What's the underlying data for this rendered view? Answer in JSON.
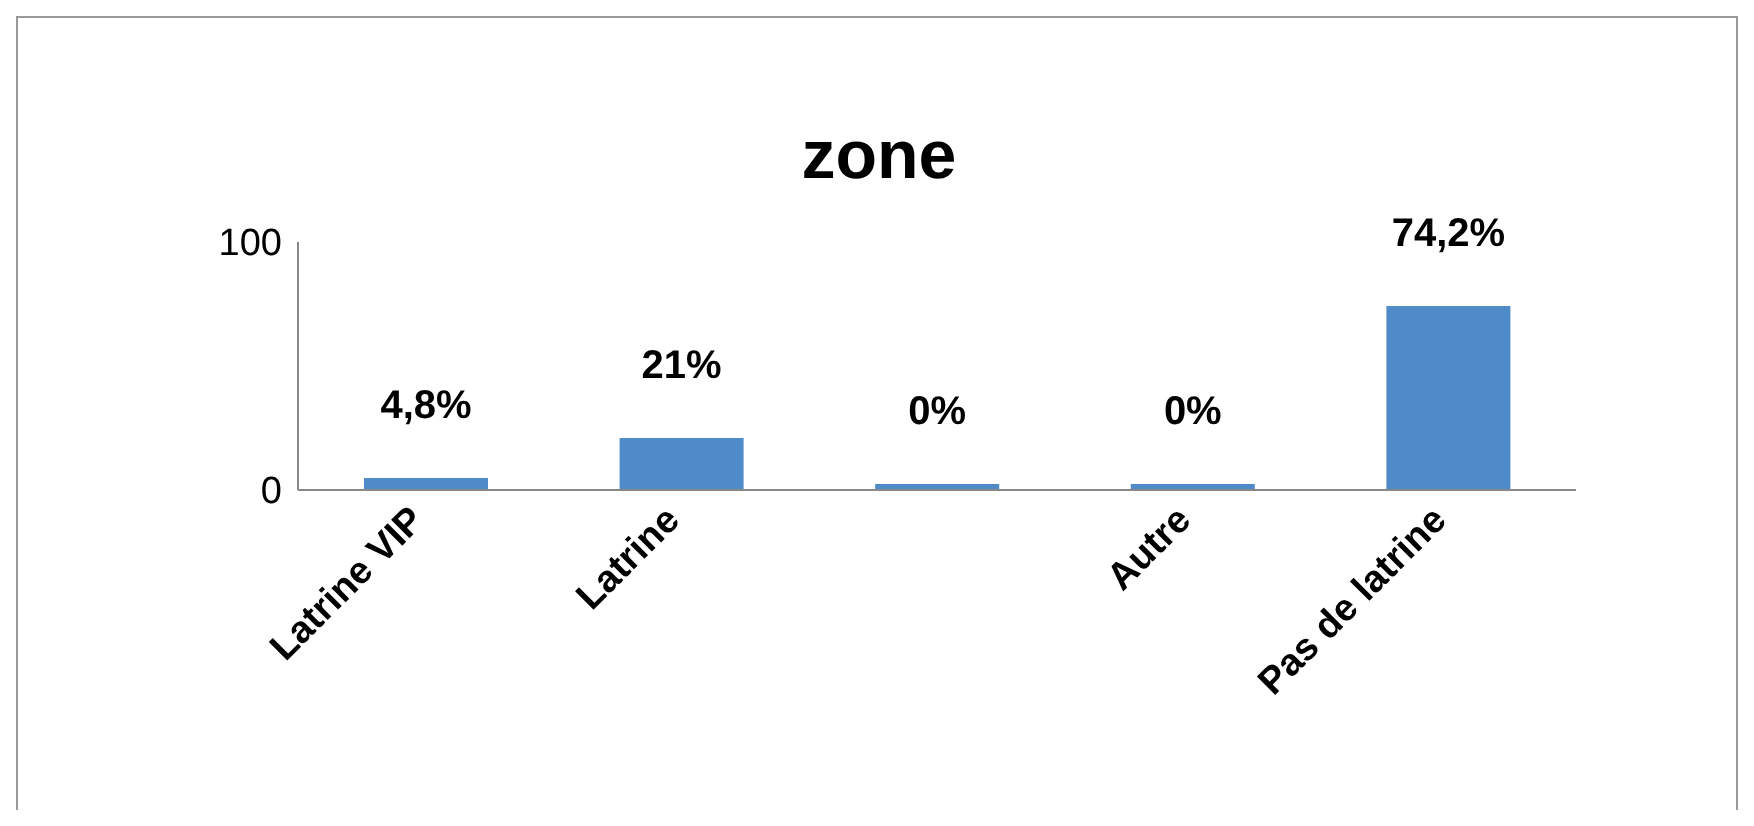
{
  "chart_data": {
    "type": "bar",
    "title": "zone",
    "categories": [
      "Latrine VIP",
      "Latrine",
      null,
      "Autre",
      "Pas de latrine"
    ],
    "values": [
      4.8,
      21,
      0,
      0,
      74.2
    ],
    "value_labels": [
      "4,8%",
      "21%",
      "0%",
      "0%",
      "74,2%"
    ],
    "color": "#4f8ac9",
    "ylim": [
      0,
      100
    ],
    "yticks": [
      0,
      100
    ],
    "grid": false,
    "legend": false
  }
}
